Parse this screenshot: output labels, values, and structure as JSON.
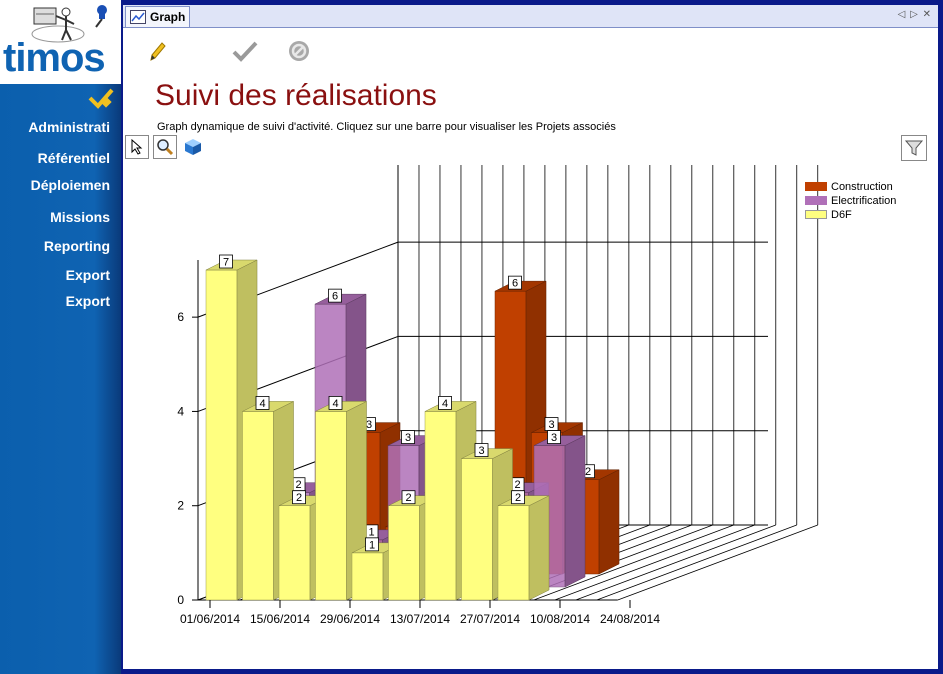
{
  "sidebar": {
    "items": [
      {
        "label": "Administrati"
      },
      {
        "label": "Référentiel"
      },
      {
        "label": "Déploiemen"
      },
      {
        "label": "Missions"
      },
      {
        "label": "Reporting"
      },
      {
        "label": "Export"
      },
      {
        "label": "Export"
      }
    ]
  },
  "logo": {
    "text": "timos"
  },
  "tab": {
    "label": "Graph"
  },
  "page": {
    "title": "Suivi des réalisations",
    "subtitle": "Graph dynamique de suivi d'activité. Cliquez sur une barre pour visualiser les Projets associés"
  },
  "colors": {
    "construction": "#c04000",
    "electrification": "#b070b8",
    "d6f": "#ffff80",
    "title": "#8a1010",
    "sidebar": "#0f63b2"
  },
  "chart_data": {
    "type": "bar",
    "ylim": [
      0,
      7
    ],
    "y_ticks": [
      0,
      2,
      4,
      6
    ],
    "x_tick_labels": [
      "01/06/2014",
      "15/06/2014",
      "29/06/2014",
      "13/07/2014",
      "27/07/2014",
      "10/08/2014",
      "24/08/2014"
    ],
    "legend_position": "top-right",
    "series": [
      {
        "name": "Construction",
        "color": "#c04000",
        "values": [
          null,
          null,
          3,
          1,
          2,
          2,
          6,
          3,
          2,
          null
        ]
      },
      {
        "name": "Electrification",
        "color": "#b070b8",
        "values": [
          null,
          2,
          6,
          1,
          3,
          2,
          2,
          2,
          3,
          null
        ]
      },
      {
        "name": "D6F",
        "color": "#ffff80",
        "values": [
          7,
          4,
          2,
          4,
          1,
          2,
          4,
          3,
          2,
          null
        ]
      }
    ],
    "data_labels": [
      "6",
      "3",
      "4",
      "4",
      "2",
      "3",
      "1",
      "2",
      "4",
      "3",
      "2",
      "6",
      "3",
      "3",
      "2",
      "2",
      "2",
      "2",
      "2"
    ]
  }
}
